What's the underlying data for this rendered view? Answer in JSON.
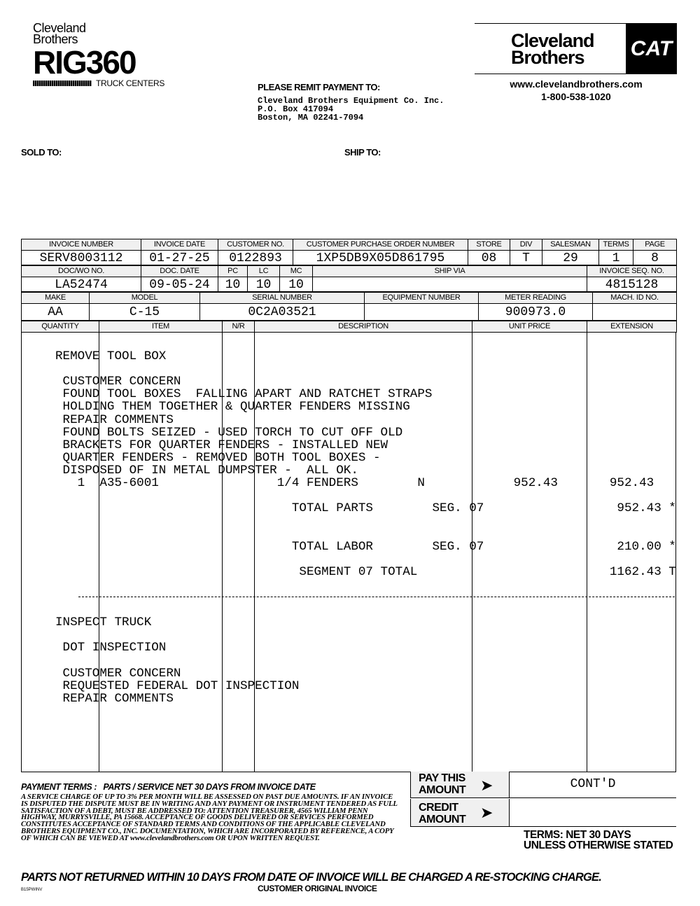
{
  "logo_left": {
    "line1": "Cleveland",
    "line2": "Brothers",
    "rig": "RIG360",
    "sub": "TRUCK CENTERS"
  },
  "logo_right": {
    "line1": "Cleveland",
    "line2": "Brothers",
    "cat": "CAT",
    "website": "www.clevelandbrothers.com",
    "phone": "1-800-538-1020"
  },
  "remit": {
    "label": "PLEASE REMIT PAYMENT TO:",
    "lines": [
      "Cleveland Brothers Equipment Co. Inc.",
      "P.O. Box 417094",
      "Boston, MA  02241-7094"
    ]
  },
  "sold_to": "SOLD TO:",
  "ship_to": "SHIP TO:",
  "row1": {
    "headers": [
      "INVOICE NUMBER",
      "INVOICE DATE",
      "CUSTOMER NO.",
      "CUSTOMER PURCHASE ORDER NUMBER",
      "STORE",
      "DIV",
      "SALESMAN",
      "TERMS",
      "PAGE"
    ],
    "values": [
      "SERV8003112",
      "01-27-25",
      "0122893",
      "1XP5DB9X05D861795",
      "08",
      "T",
      "29",
      "1",
      "8"
    ]
  },
  "row2": {
    "headers": [
      "DOC/WO NO.",
      "DOC. DATE",
      "PC",
      "LC",
      "MC",
      "SHIP VIA",
      "INVOICE SEQ. NO."
    ],
    "values": [
      "LA52474",
      "09-05-24",
      "10",
      "10",
      "10",
      "",
      "4815128"
    ]
  },
  "row3": {
    "headers": [
      "MAKE",
      "MODEL",
      "SERIAL NUMBER",
      "EQUIPMENT NUMBER",
      "METER READING",
      "MACH. ID NO."
    ],
    "values": [
      "AA",
      "C-15",
      "0C2A03521",
      "",
      "900973.0",
      ""
    ]
  },
  "row4": {
    "headers": [
      "QUANTITY",
      "ITEM",
      "N/R",
      "DESCRIPTION",
      "UNIT PRICE",
      "EXTENSION"
    ]
  },
  "body_lines": [
    {
      "row": 0,
      "text": "REMOVE TOOL BOX"
    },
    {
      "row": 2,
      "text": " CUSTOMER CONCERN"
    },
    {
      "row": 3,
      "text": " FOUND TOOL BOXES  FALLING APART AND RATCHET STRAPS"
    },
    {
      "row": 4,
      "text": " HOLDING THEM TOGETHER & QUARTER FENDERS MISSING"
    },
    {
      "row": 5,
      "text": " REPAIR COMMENTS"
    },
    {
      "row": 6,
      "text": " FOUND BOLTS SEIZED - USED TORCH TO CUT OFF OLD"
    },
    {
      "row": 7,
      "text": " BRACKETS FOR QUARTER FENDERS - INSTALLED NEW"
    },
    {
      "row": 8,
      "text": " QUARTER FENDERS - REMOVED BOTH TOOL BOXES -"
    },
    {
      "row": 9,
      "text": " DISPOSED OF IN METAL DUMPSTER -  ALL OK."
    },
    {
      "row": 10,
      "text": "   1  A35-6001                1/4 FENDERS        N            952.43       952.43"
    },
    {
      "row": 12,
      "text": "                                TOTAL PARTS        SEG. 07                  952.43 *"
    },
    {
      "row": 15,
      "text": "                                TOTAL LABOR        SEG. 07                  210.00 *"
    },
    {
      "row": 17,
      "text": "                                 SEGMENT 07 TOTAL                          1162.43 T"
    },
    {
      "row": 21,
      "text": "INSPECT TRUCK"
    },
    {
      "row": 23,
      "text": " DOT INSPECTION"
    },
    {
      "row": 25,
      "text": " CUSTOMER CONCERN"
    },
    {
      "row": 26,
      "text": " REQUESTED FEDERAL DOT INSPECTION"
    },
    {
      "row": 27,
      "text": " REPAIR COMMENTS"
    }
  ],
  "payment_terms": {
    "title": "PAYMENT TERMS :   PARTS / SERVICE NET 30 DAYS FROM INVOICE DATE",
    "text": "A SERVICE CHARGE OF UP TO 3% PER MONTH WILL BE ASSESSED ON PAST DUE AMOUNTS. IF AN INVOICE IS DISPUTED THE DISPUTE MUST BE IN WRITING AND ANY PAYMENT OR INSTRUMENT TENDERED AS FULL SATISFACTION OF A DEBT, MUST BE ADDRESSED TO: ATTENTION TREASURER, 4565 WILLIAM PENN HIGHWAY, MURRYSVILLE, PA 15668. ACCEPTANCE OF GOODS DELIVERED OR SERVICES PERFORMED CONSTITUTES ACCEPTANCE OF STANDARD TERMS AND CONDITIONS OF THE APPLICABLE CLEVELAND BROTHERS EQUIPMENT CO., INC. DOCUMENTATION, WHICH ARE INCORPORATED BY REFERENCE, A COPY OF WHICH CAN BE VIEWED AT www.clevelandbrothers.com OR UPON WRITTEN REQUEST."
  },
  "pay_this_amount": {
    "label1": "PAY THIS",
    "label2": "AMOUNT",
    "value": "CONT'D"
  },
  "credit_amount": {
    "label1": "CREDIT",
    "label2": "AMOUNT",
    "value": ""
  },
  "terms_net": {
    "line1": "TERMS: NET 30 DAYS",
    "line2": "UNLESS OTHERWISE STATED"
  },
  "restock": "PARTS NOT RETURNED WITHIN 10 DAYS FROM DATE OF INVOICE WILL BE CHARGED A RE-STOCKING CHARGE.",
  "form_code": "B15PWINV",
  "copy_label": "CUSTOMER ORIGINAL INVOICE"
}
